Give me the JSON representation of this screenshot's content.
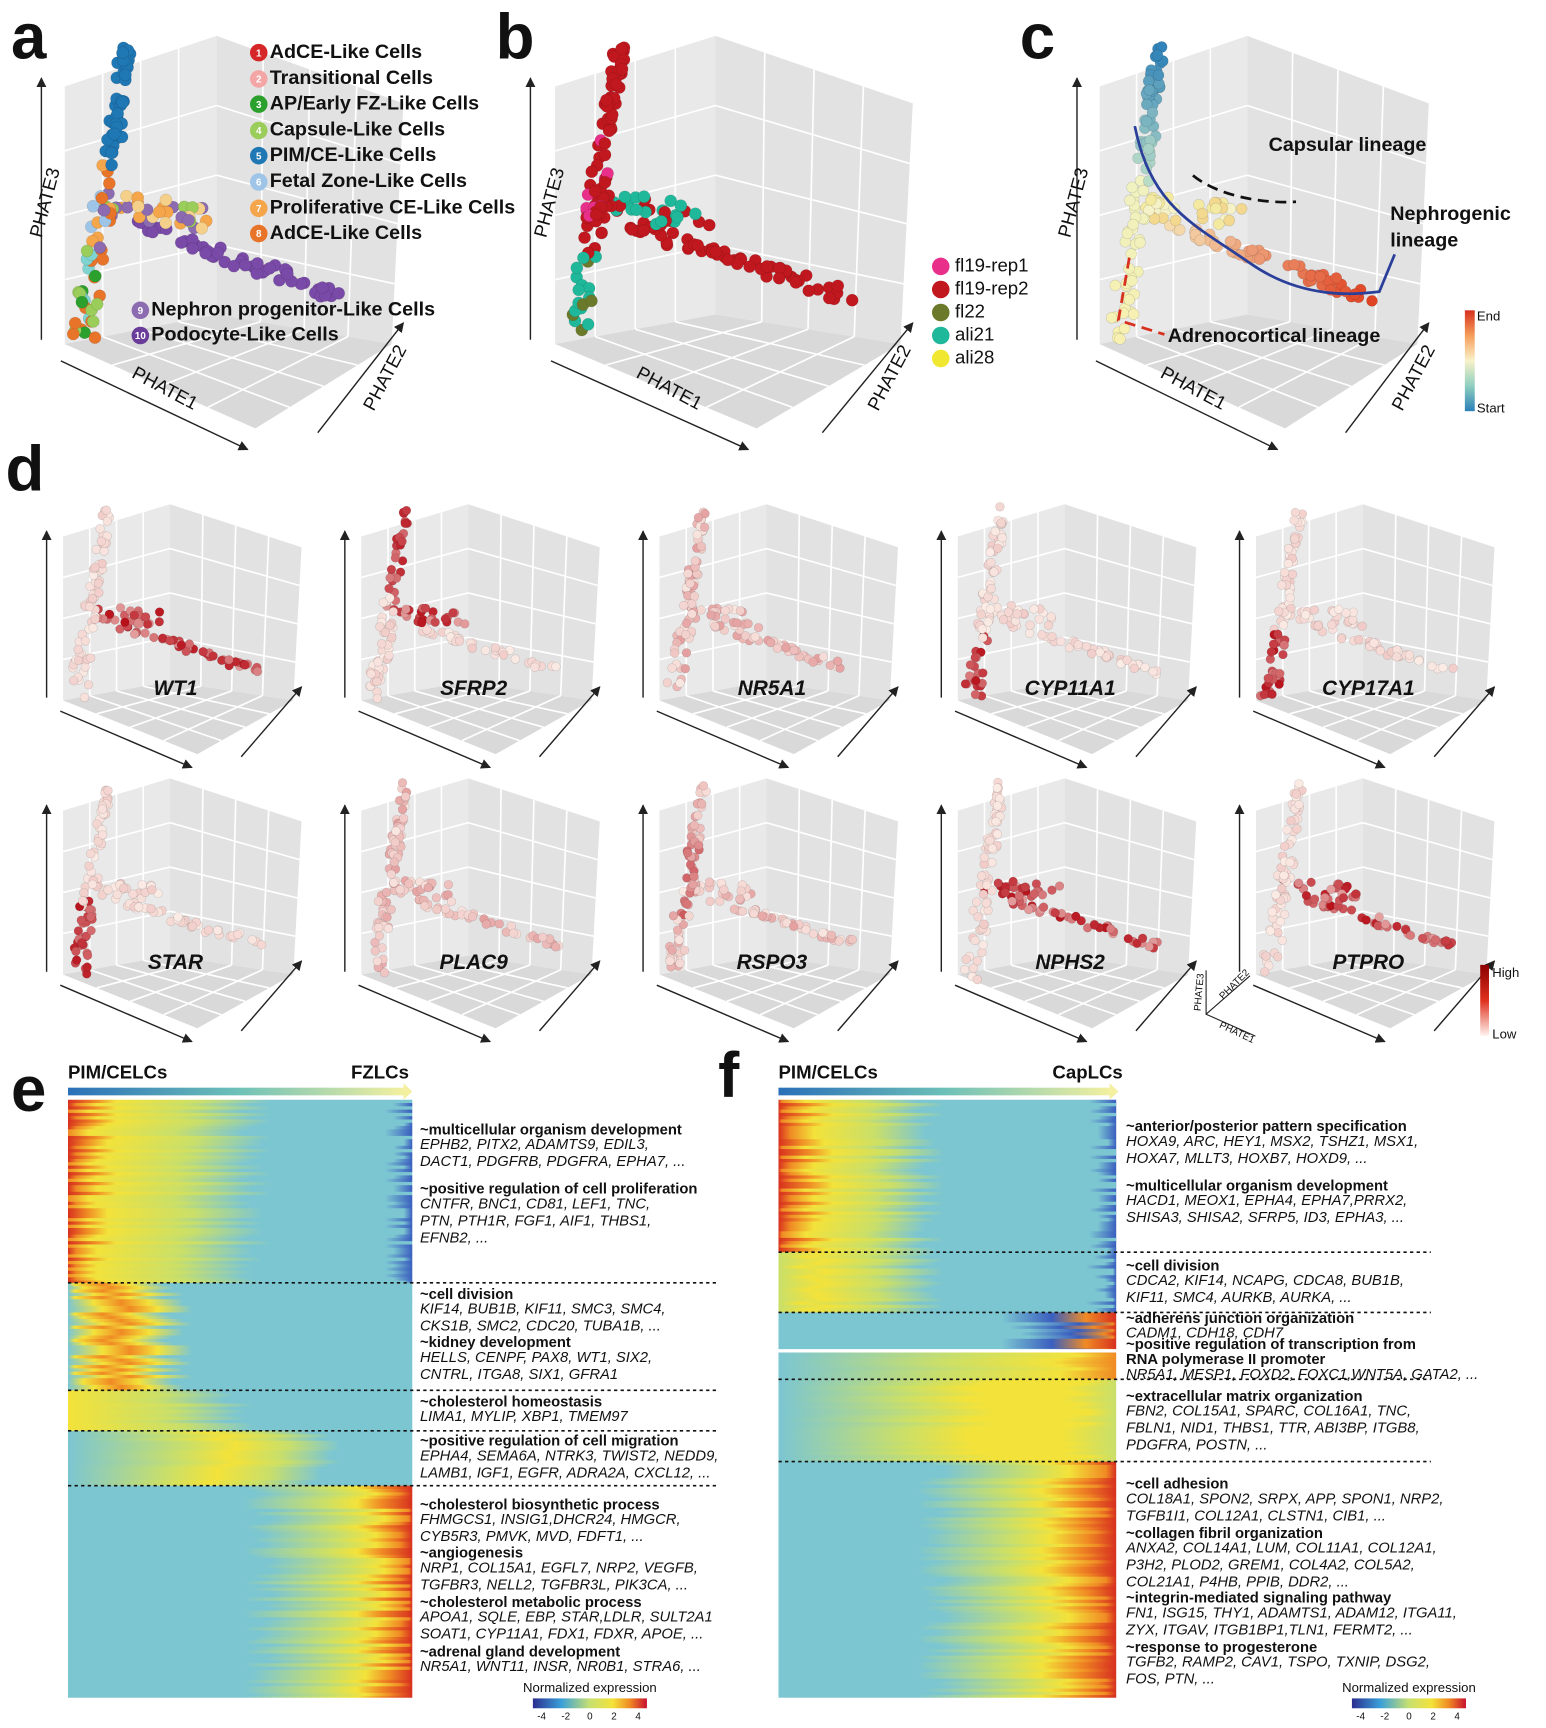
{
  "panel_a": {
    "letter": "a",
    "axes": [
      "PHATE1",
      "PHATE2",
      "PHATE3"
    ],
    "legend": [
      {
        "number": 1,
        "label": "AdCE-Like Cells",
        "color": "#d62728"
      },
      {
        "number": 2,
        "label": "Transitional Cells",
        "color": "#f4a6a6"
      },
      {
        "number": 3,
        "label": "AP/Early FZ-Like Cells",
        "color": "#2ca02c"
      },
      {
        "number": 4,
        "label": "Capsule-Like Cells",
        "color": "#9acd5a"
      },
      {
        "number": 5,
        "label": "PIM/CE-Like Cells",
        "color": "#1f77b4"
      },
      {
        "number": 6,
        "label": "Fetal Zone-Like Cells",
        "color": "#9ec5e8"
      },
      {
        "number": 7,
        "label": "Proliferative CE-Like Cells",
        "color": "#f5a54a"
      },
      {
        "number": 8,
        "label": "AdCE-Like Cells",
        "color": "#e8742a"
      },
      {
        "number": 9,
        "label": "Nephron progenitor-Like Cells",
        "color": "#8c6bb1"
      },
      {
        "number": 10,
        "label": "Podocyte-Like Cells",
        "color": "#6a3d9a"
      }
    ]
  },
  "panel_b": {
    "letter": "b",
    "axes": [
      "PHATE1",
      "PHATE2",
      "PHATE3"
    ],
    "legend": [
      {
        "label": "fl19-rep1",
        "color": "#e8308a"
      },
      {
        "label": "fl19-rep2",
        "color": "#c0181e"
      },
      {
        "label": "fl22",
        "color": "#6b7a2a"
      },
      {
        "label": "ali21",
        "color": "#20b89a"
      },
      {
        "label": "ali28",
        "color": "#f0e830"
      }
    ]
  },
  "panel_c": {
    "letter": "c",
    "axes": [
      "PHATE1",
      "PHATE2",
      "PHATE3"
    ],
    "annotations": {
      "capsular": "Capsular lineage",
      "nephrogenic": [
        "Nephrogenic",
        "lineage"
      ],
      "adrenocortical": "Adrenocortical lineage"
    },
    "colorbar": {
      "top": "End",
      "bottom": "Start"
    }
  },
  "panel_d": {
    "letter": "d",
    "genes": [
      "WT1",
      "SFRP2",
      "NR5A1",
      "CYP11A1",
      "CYP17A1",
      "STAR",
      "PLAC9",
      "RSPO3",
      "NPHS2",
      "PTPRO"
    ],
    "axis_key": [
      "PHATE1",
      "PHATE2",
      "PHATE3"
    ],
    "colorbar": {
      "top": "High",
      "bottom": "Low"
    }
  },
  "panel_e": {
    "letter": "e",
    "start": "PIM/CELCs",
    "end": "FZLCs",
    "terms": [
      {
        "title": [
          "~multicellular organism development"
        ],
        "genes": [
          "EPHB2, PITX2, ADAMTS9, EDIL3,",
          "DACT1, PDGFRB, PDGFRA, EPHA7, ..."
        ]
      },
      {
        "title": [
          "~positive regulation of cell proliferation"
        ],
        "genes": [
          "CNTFR, BNC1, CD81, LEF1, TNC,",
          "PTN, PTH1R, FGF1, AIF1, THBS1,",
          "EFNB2, ..."
        ]
      },
      {
        "title": [
          "~cell division"
        ],
        "genes": [
          "KIF14, BUB1B, KIF11, SMC3, SMC4,",
          "CKS1B, SMC2, CDC20, TUBA1B, ..."
        ]
      },
      {
        "title": [
          "~kidney development"
        ],
        "genes": [
          "HELLS, CENPF, PAX8, WT1, SIX2,",
          "CNTRL, ITGA8, SIX1, GFRA1"
        ]
      },
      {
        "title": [
          "~cholesterol homeostasis"
        ],
        "genes": [
          "LIMA1, MYLIP, XBP1, TMEM97"
        ]
      },
      {
        "title": [
          "~positive regulation of cell migration"
        ],
        "genes": [
          "EPHA4, SEMA6A, NTRK3, TWIST2, NEDD9,",
          "LAMB1, IGF1, EGFR, ADRA2A, CXCL12, ..."
        ]
      },
      {
        "title": [
          "~cholesterol biosynthetic process"
        ],
        "genes": [
          "FHMGCS1, INSIG1,DHCR24, HMGCR,",
          "CYB5R3, PMVK, MVD, FDFT1, ..."
        ]
      },
      {
        "title": [
          "~angiogenesis"
        ],
        "genes": [
          "NRP1, COL15A1, EGFL7, NRP2, VEGFB,",
          "TGFBR3, NELL2, TGFBR3L, PIK3CA, ..."
        ]
      },
      {
        "title": [
          "~cholesterol metabolic process"
        ],
        "genes": [
          "APOA1, SQLE, EBP, STAR,LDLR, SULT2A1",
          "SOAT1, CYP11A1, FDX1, FDXR, APOE, ..."
        ]
      },
      {
        "title": [
          "~adrenal gland development"
        ],
        "genes": [
          "NR5A1, WNT11, INSR, NR0B1, STRA6, ..."
        ]
      }
    ],
    "colorbar": {
      "title": "Normalized expression",
      "ticks": [
        -4,
        -2,
        0,
        2,
        4
      ]
    }
  },
  "panel_f": {
    "letter": "f",
    "start": "PIM/CELCs",
    "end": "CapLCs",
    "terms": [
      {
        "title": [
          "~anterior/posterior pattern specification"
        ],
        "genes": [
          "HOXA9, ARC, HEY1, MSX2, TSHZ1, MSX1,",
          "HOXA7, MLLT3, HOXB7, HOXD9, ..."
        ]
      },
      {
        "title": [
          "~multicellular organism development"
        ],
        "genes": [
          "HACD1, MEOX1, EPHA4, EPHA7,PRRX2,",
          "SHISA3, SHISA2, SFRP5, ID3,  EPHA3, ..."
        ]
      },
      {
        "title": [
          "~cell division"
        ],
        "genes": [
          "CDCA2, KIF14, NCAPG, CDCA8, BUB1B,",
          "KIF11, SMC4, AURKB, AURKA, ..."
        ]
      },
      {
        "title": [
          "~adherens junction organization"
        ],
        "genes": [
          "CADM1, CDH18, CDH7"
        ]
      },
      {
        "title": [
          "~positive regulation of transcription from",
          "RNA polymerase II promoter"
        ],
        "genes": [
          "NR5A1, MESP1, FOXD2, FOXC1,WNT5A, GATA2, ..."
        ]
      },
      {
        "title": [
          "~extracellular matrix organization"
        ],
        "genes": [
          "FBN2, COL15A1, SPARC, COL16A1, TNC,",
          "FBLN1, NID1, THBS1, TTR, ABI3BP, ITGB8,",
          "PDGFRA, POSTN, ..."
        ]
      },
      {
        "title": [
          "~cell adhesion"
        ],
        "genes": [
          "COL18A1, SPON2, SRPX, APP, SPON1, NRP2,",
          "TGFB1I1, COL12A1, CLSTN1, CIB1, ..."
        ]
      },
      {
        "title": [
          "~collagen fibril organization"
        ],
        "genes": [
          "ANXA2, COL14A1, LUM, COL11A1, COL12A1,",
          "P3H2, PLOD2, GREM1, COL4A2, COL5A2,",
          "COL21A1, P4HB, PPIB, DDR2, ..."
        ]
      },
      {
        "title": [
          "~integrin-mediated signaling pathway"
        ],
        "genes": [
          "FN1, ISG15, THY1, ADAMTS1, ADAM12, ITGA11,",
          "ZYX, ITGAV, ITGB1BP1,TLN1, FERMT2, ..."
        ]
      },
      {
        "title": [
          "~response to progesterone"
        ],
        "genes": [
          "TGFB2, RAMP2, CAV1, TSPO, TXNIP, DSG2,",
          "FOS, PTN, ..."
        ]
      }
    ],
    "colorbar": {
      "title": "Normalized expression",
      "ticks": [
        -4,
        -2,
        0,
        2,
        4
      ]
    }
  }
}
